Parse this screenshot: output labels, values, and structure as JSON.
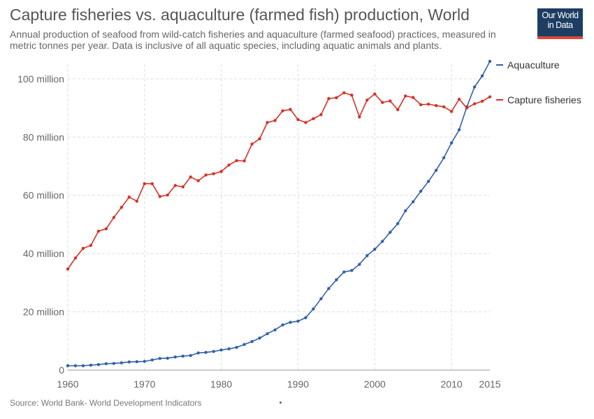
{
  "header": {
    "title": "Capture fisheries vs. aquaculture (farmed fish) production, World",
    "subtitle": "Annual production of seafood from wild-catch fisheries and aquaculture (farmed seafood) practices, measured in metric tonnes per year. Data is inclusive of all aquatic species, including aquatic animals and plants.",
    "logo_line1": "Our World",
    "logo_line2": "in Data"
  },
  "footer": {
    "source": "Source: World Bank- World Development Indicators"
  },
  "colors": {
    "aquaculture": "#3360a9",
    "capture": "#d73027",
    "grid": "#dddddd",
    "axis_text": "#666666"
  },
  "chart_data": {
    "type": "line",
    "title": "Capture fisheries vs. aquaculture (farmed fish) production, World",
    "xlabel": "",
    "ylabel": "",
    "xlim": [
      1960,
      2015
    ],
    "ylim": [
      0,
      105000000
    ],
    "grid": true,
    "legend": "right",
    "x_ticks": [
      1960,
      1970,
      1980,
      1990,
      2000,
      2010,
      2015
    ],
    "x_tick_labels": [
      "1960",
      "1970",
      "1980",
      "1990",
      "2000",
      "2010",
      "2015"
    ],
    "y_ticks": [
      0,
      20000000,
      40000000,
      60000000,
      80000000,
      100000000
    ],
    "y_tick_labels": [
      "0",
      "20 million",
      "40 million",
      "60 million",
      "80 million",
      "100 million"
    ],
    "x": [
      1960,
      1961,
      1962,
      1963,
      1964,
      1965,
      1966,
      1967,
      1968,
      1969,
      1970,
      1971,
      1972,
      1973,
      1974,
      1975,
      1976,
      1977,
      1978,
      1979,
      1980,
      1981,
      1982,
      1983,
      1984,
      1985,
      1986,
      1987,
      1988,
      1989,
      1990,
      1991,
      1992,
      1993,
      1994,
      1995,
      1996,
      1997,
      1998,
      1999,
      2000,
      2001,
      2002,
      2003,
      2004,
      2005,
      2006,
      2007,
      2008,
      2009,
      2010,
      2011,
      2012,
      2013,
      2014,
      2015
    ],
    "series": [
      {
        "name": "Aquaculture",
        "color": "#3360a9",
        "values": [
          1500000,
          1500000,
          1500000,
          1700000,
          1900000,
          2200000,
          2300000,
          2500000,
          2800000,
          2900000,
          3000000,
          3500000,
          4000000,
          4100000,
          4500000,
          4800000,
          5000000,
          5900000,
          6100000,
          6400000,
          6900000,
          7300000,
          7800000,
          8800000,
          9800000,
          11000000,
          12500000,
          13800000,
          15500000,
          16400000,
          16800000,
          18000000,
          21000000,
          24500000,
          28000000,
          31000000,
          33700000,
          34200000,
          36300000,
          39300000,
          41500000,
          44200000,
          47300000,
          50300000,
          54700000,
          57800000,
          61400000,
          64800000,
          68600000,
          72900000,
          78000000,
          82500000,
          90400000,
          97200000,
          101000000,
          106000000
        ]
      },
      {
        "name": "Capture fisheries",
        "color": "#d73027",
        "values": [
          34700000,
          38500000,
          41800000,
          42800000,
          47700000,
          48500000,
          52400000,
          55900000,
          59400000,
          58000000,
          64000000,
          64000000,
          59600000,
          60100000,
          63400000,
          62900000,
          66300000,
          65000000,
          67000000,
          67400000,
          68200000,
          70400000,
          71900000,
          71800000,
          77600000,
          79400000,
          85000000,
          85700000,
          89000000,
          89500000,
          86000000,
          85000000,
          86300000,
          87700000,
          93200000,
          93500000,
          95200000,
          94400000,
          86900000,
          92700000,
          94800000,
          91900000,
          92400000,
          89400000,
          94100000,
          93600000,
          91100000,
          91300000,
          90800000,
          90400000,
          88800000,
          93000000,
          90000000,
          91400000,
          92300000,
          93800000
        ]
      }
    ]
  }
}
